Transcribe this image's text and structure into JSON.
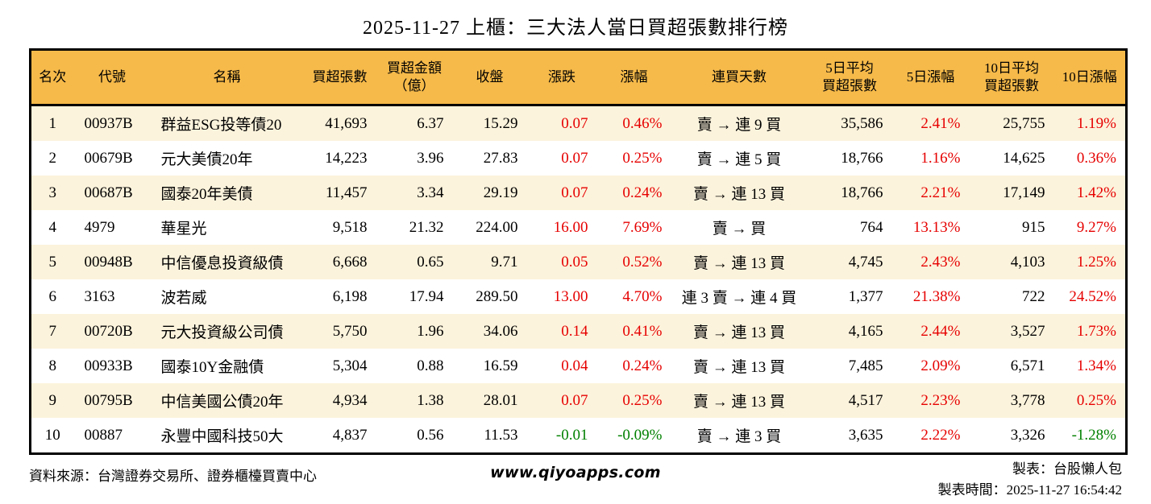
{
  "title": "2025-11-27 上櫃：三大法人當日買超張數排行榜",
  "colors": {
    "up": "#e60000",
    "down": "#008000",
    "header_bg": "#f6ba4a",
    "stripe": "#fcf3dc",
    "border": "#000000"
  },
  "chart_data": {
    "type": "table",
    "title": "2025-11-27 上櫃：三大法人當日買超張數排行榜",
    "columns": [
      "名次",
      "代號",
      "名稱",
      "買超張數",
      "買超金額\n（億）",
      "收盤",
      "漲跌",
      "漲幅",
      "連買天數",
      "5日平均\n買超張數",
      "5日漲幅",
      "10日平均\n買超張數",
      "10日漲幅"
    ],
    "rows": [
      [
        "1",
        "00937B",
        "群益ESG投等債20",
        "41,693",
        "6.37",
        "15.29",
        "0.07",
        "0.46%",
        "賣 → 連 9 買",
        "35,586",
        "2.41%",
        "25,755",
        "1.19%"
      ],
      [
        "2",
        "00679B",
        "元大美債20年",
        "14,223",
        "3.96",
        "27.83",
        "0.07",
        "0.25%",
        "賣 → 連 5 買",
        "18,766",
        "1.16%",
        "14,625",
        "0.36%"
      ],
      [
        "3",
        "00687B",
        "國泰20年美債",
        "11,457",
        "3.34",
        "29.19",
        "0.07",
        "0.24%",
        "賣 → 連 13 買",
        "18,766",
        "2.21%",
        "17,149",
        "1.42%"
      ],
      [
        "4",
        "4979",
        "華星光",
        "9,518",
        "21.32",
        "224.00",
        "16.00",
        "7.69%",
        "賣 → 買",
        "764",
        "13.13%",
        "915",
        "9.27%"
      ],
      [
        "5",
        "00948B",
        "中信優息投資級債",
        "6,668",
        "0.65",
        "9.71",
        "0.05",
        "0.52%",
        "賣 → 連 13 買",
        "4,745",
        "2.43%",
        "4,103",
        "1.25%"
      ],
      [
        "6",
        "3163",
        "波若威",
        "6,198",
        "17.94",
        "289.50",
        "13.00",
        "4.70%",
        "連 3 賣 → 連 4 買",
        "1,377",
        "21.38%",
        "722",
        "24.52%"
      ],
      [
        "7",
        "00720B",
        "元大投資級公司債",
        "5,750",
        "1.96",
        "34.06",
        "0.14",
        "0.41%",
        "賣 → 連 13 買",
        "4,165",
        "2.44%",
        "3,527",
        "1.73%"
      ],
      [
        "8",
        "00933B",
        "國泰10Y金融債",
        "5,304",
        "0.88",
        "16.59",
        "0.04",
        "0.24%",
        "賣 → 連 13 買",
        "7,485",
        "2.09%",
        "6,571",
        "1.34%"
      ],
      [
        "9",
        "00795B",
        "中信美國公債20年",
        "4,934",
        "1.38",
        "28.01",
        "0.07",
        "0.25%",
        "賣 → 連 13 買",
        "4,517",
        "2.23%",
        "3,778",
        "0.25%"
      ],
      [
        "10",
        "00887",
        "永豐中國科技50大",
        "4,837",
        "0.56",
        "11.53",
        "-0.01",
        "-0.09%",
        "賣 → 連 3 買",
        "3,635",
        "2.22%",
        "3,326",
        "-1.28%"
      ]
    ],
    "row_dirs": [
      {
        "change": "up",
        "pct5": "up",
        "pct10": "up"
      },
      {
        "change": "up",
        "pct5": "up",
        "pct10": "up"
      },
      {
        "change": "up",
        "pct5": "up",
        "pct10": "up"
      },
      {
        "change": "up",
        "pct5": "up",
        "pct10": "up"
      },
      {
        "change": "up",
        "pct5": "up",
        "pct10": "up"
      },
      {
        "change": "up",
        "pct5": "up",
        "pct10": "up"
      },
      {
        "change": "up",
        "pct5": "up",
        "pct10": "up"
      },
      {
        "change": "up",
        "pct5": "up",
        "pct10": "up"
      },
      {
        "change": "up",
        "pct5": "up",
        "pct10": "up"
      },
      {
        "change": "down",
        "pct5": "up",
        "pct10": "down"
      }
    ]
  },
  "footer": {
    "source": "資料來源：台灣證券交易所、證券櫃檯買賣中心",
    "website": "www.qiyoapps.com",
    "maker": "製表：台股懶人包",
    "made_at": "製表時間：2025-11-27 16:54:42"
  }
}
